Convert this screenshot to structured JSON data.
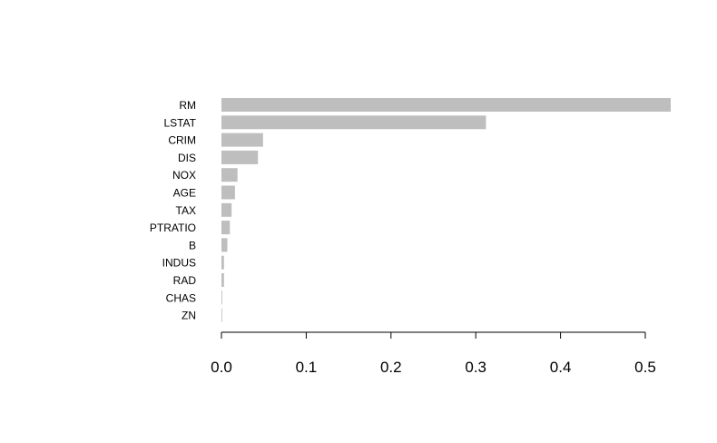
{
  "chart_data": {
    "type": "bar",
    "orientation": "horizontal",
    "categories": [
      "RM",
      "LSTAT",
      "CRIM",
      "DIS",
      "NOX",
      "AGE",
      "TAX",
      "PTRATIO",
      "B",
      "INDUS",
      "RAD",
      "CHAS",
      "ZN"
    ],
    "values": [
      0.53,
      0.312,
      0.049,
      0.043,
      0.019,
      0.016,
      0.012,
      0.01,
      0.007,
      0.003,
      0.003,
      0.001,
      0.0005
    ],
    "x_ticks": [
      "0.0",
      "0.1",
      "0.2",
      "0.3",
      "0.4",
      "0.5"
    ],
    "x_tick_values": [
      0,
      0.1,
      0.2,
      0.3,
      0.4,
      0.5
    ],
    "xlim": [
      0,
      0.53
    ],
    "title": "",
    "xlabel": "",
    "ylabel": "",
    "grid": false,
    "legend": "none",
    "bar_color": "#bebebe",
    "axis_color": "#000000"
  }
}
